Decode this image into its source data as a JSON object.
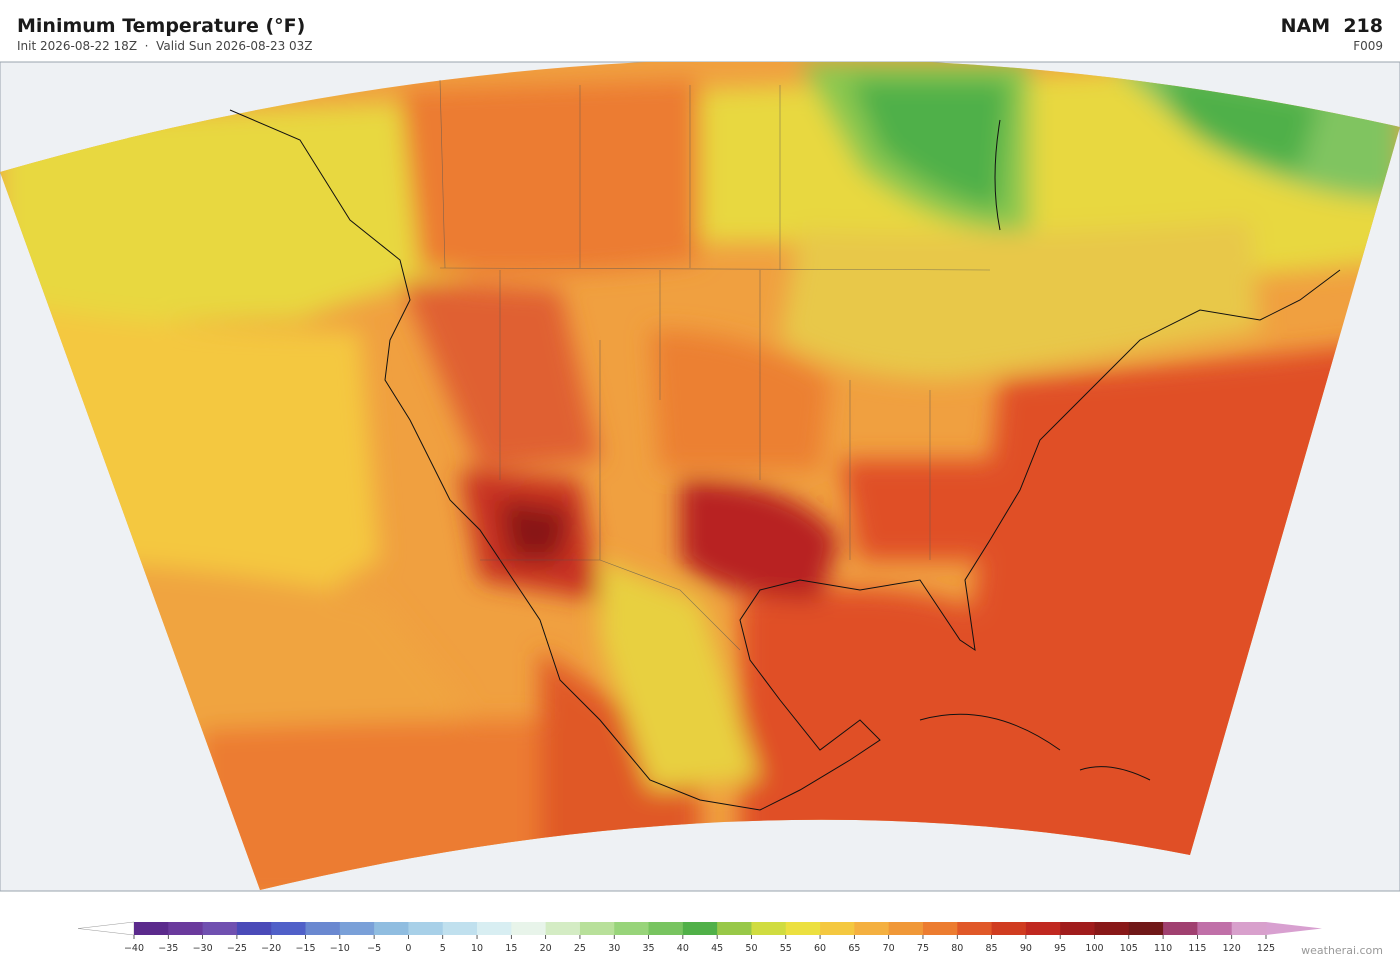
{
  "header": {
    "title": "Minimum Temperature  (°F)",
    "subtitle": "Init 2026-08-22 18Z  ·  Valid Sun 2026-08-23 03Z",
    "model": "NAM  218",
    "forecast_hour": "F009"
  },
  "colorbar": {
    "ticks": [
      {
        "value": -40,
        "label": "−40"
      },
      {
        "value": -35,
        "label": "−35"
      },
      {
        "value": -30,
        "label": "−30"
      },
      {
        "value": -25,
        "label": "−25"
      },
      {
        "value": -20,
        "label": "−20"
      },
      {
        "value": -15,
        "label": "−15"
      },
      {
        "value": -10,
        "label": "−10"
      },
      {
        "value": -5,
        "label": "−5"
      },
      0,
      5,
      10,
      15,
      20,
      25,
      30,
      35,
      40,
      45,
      50,
      55,
      60,
      65,
      70,
      75,
      80,
      85,
      90,
      95,
      100,
      105,
      110,
      115,
      120,
      125
    ],
    "colors": [
      "#5b2a8c",
      "#6a3a9c",
      "#7050b0",
      "#4a4ab8",
      "#5060c8",
      "#6a88d0",
      "#7aa0d8",
      "#90bde0",
      "#a8d0e8",
      "#c0e0ee",
      "#d8eef2",
      "#e8f4ea",
      "#d4ecc4",
      "#b8e09a",
      "#98d47a",
      "#78c460",
      "#50b048",
      "#98c848",
      "#d0dc40",
      "#ece040",
      "#f4c840",
      "#f4b040",
      "#f09838",
      "#ec7c30",
      "#e05828",
      "#d03c20",
      "#c02820",
      "#a01c1c",
      "#881818",
      "#701818",
      "#a04070",
      "#c070a8",
      "#d8a0cc"
    ],
    "under_color": "#ffffff",
    "over_color": "#d8a0d0"
  },
  "watermark": "weatherai.com"
}
